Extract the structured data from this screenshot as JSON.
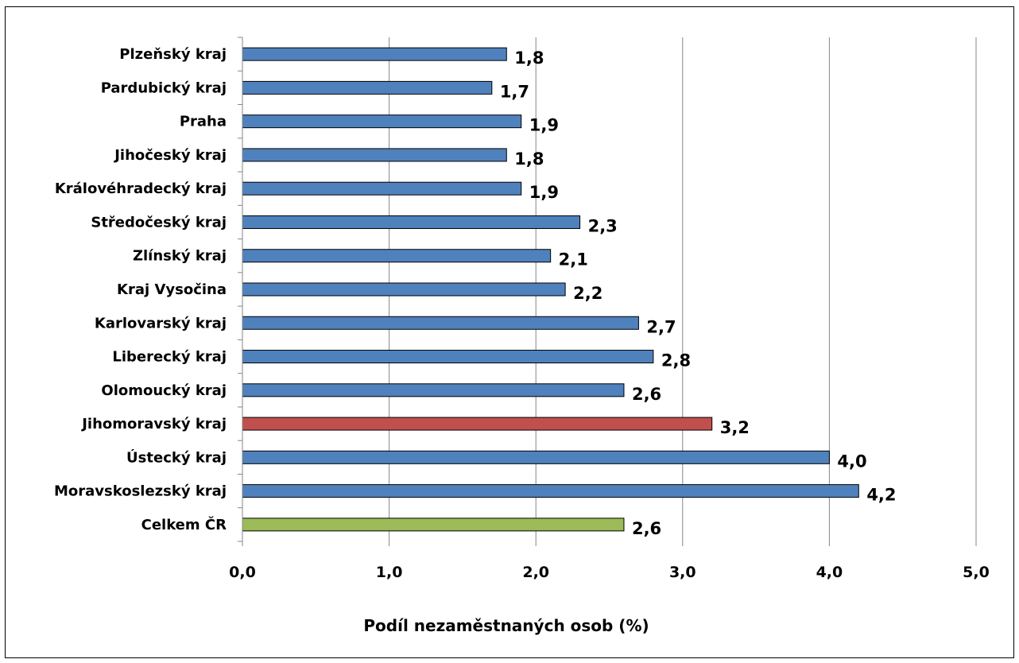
{
  "chart_data": {
    "type": "bar",
    "orientation": "horizontal",
    "title": "",
    "xlabel": "Podíl nezaměstnaných osob (%)",
    "ylabel": "",
    "xlim": [
      0,
      5
    ],
    "x_ticks": [
      "0,0",
      "1,0",
      "2,0",
      "3,0",
      "4,0",
      "5,0"
    ],
    "grid": "vertical",
    "legend": "none",
    "categories": [
      "Plzeňský kraj",
      "Pardubický kraj",
      "Praha",
      "Jihočeský kraj",
      "Královéhradecký kraj",
      "Středočeský kraj",
      "Zlínský kraj",
      "Kraj Vysočina",
      "Karlovarský kraj",
      "Liberecký kraj",
      "Olomoucký kraj",
      "Jihomoravský kraj",
      "Ústecký kraj",
      "Moravskoslezský kraj",
      "Celkem ČR"
    ],
    "values": [
      1.8,
      1.7,
      1.9,
      1.8,
      1.9,
      2.3,
      2.1,
      2.2,
      2.7,
      2.8,
      2.6,
      3.2,
      4.0,
      4.2,
      2.6
    ],
    "value_labels": [
      "1,8",
      "1,7",
      "1,9",
      "1,8",
      "1,9",
      "2,3",
      "2,1",
      "2,2",
      "2,7",
      "2,8",
      "2,6",
      "3,2",
      "4,0",
      "4,2",
      "2,6"
    ],
    "bar_colors": [
      "#4f81bd",
      "#4f81bd",
      "#4f81bd",
      "#4f81bd",
      "#4f81bd",
      "#4f81bd",
      "#4f81bd",
      "#4f81bd",
      "#4f81bd",
      "#4f81bd",
      "#4f81bd",
      "#c0504d",
      "#4f81bd",
      "#4f81bd",
      "#9bbb59"
    ]
  }
}
